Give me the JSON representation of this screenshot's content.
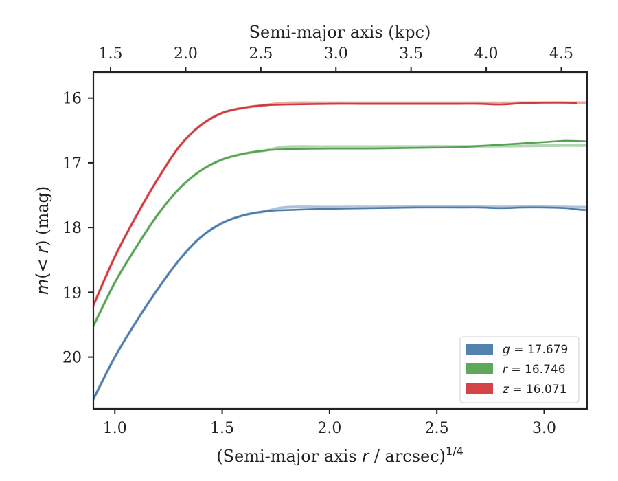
{
  "chart_data": {
    "type": "line",
    "xlabel": "(Semi-major axis r / arcsec)",
    "xlabel_parts": {
      "pre": "(Semi-major axis ",
      "var": "r",
      "post": " / arcsec)",
      "sup": "1/4"
    },
    "ylabel": "m(< r) (mag)",
    "ylabel_parts": {
      "pre": "m",
      "mid": "(< ",
      "var": "r",
      "post": ") (mag)"
    },
    "top_xlabel": "Semi-major axis (kpc)",
    "xlim": [
      0.9,
      3.2
    ],
    "ylim": [
      20.8,
      15.6
    ],
    "y_inverted": true,
    "x_ticks": [
      1.0,
      1.5,
      2.0,
      2.5,
      3.0
    ],
    "x_tick_labels": [
      "1.0",
      "1.5",
      "2.0",
      "2.5",
      "3.0"
    ],
    "y_ticks": [
      16,
      17,
      18,
      19,
      20
    ],
    "y_tick_labels": [
      "16",
      "17",
      "18",
      "19",
      "20"
    ],
    "top_ticks_kpc": [
      1.5,
      2.0,
      2.5,
      3.0,
      3.5,
      4.0,
      4.5
    ],
    "top_tick_labels": [
      "1.5",
      "2.0",
      "2.5",
      "3.0",
      "3.5",
      "4.0",
      "4.5"
    ],
    "top_ticks_at_x": [
      0.98,
      1.33,
      1.68,
      2.03,
      2.38,
      2.73,
      3.08
    ],
    "legend_position": "lower-right",
    "series": [
      {
        "name": "g",
        "legend_var": "g",
        "legend_value": "= 17.679",
        "color": "#4a7bab",
        "model_end_x": 3.2,
        "x": [
          0.9,
          1.0,
          1.1,
          1.2,
          1.3,
          1.4,
          1.5,
          1.6,
          1.7,
          1.8,
          2.0,
          2.2,
          2.4,
          2.6,
          2.7,
          2.8,
          2.9,
          3.0,
          3.1,
          3.15,
          3.2
        ],
        "y": [
          20.65,
          20.0,
          19.45,
          18.95,
          18.5,
          18.15,
          17.93,
          17.81,
          17.75,
          17.73,
          17.71,
          17.7,
          17.69,
          17.69,
          17.69,
          17.7,
          17.69,
          17.69,
          17.7,
          17.72,
          17.73
        ]
      },
      {
        "name": "r",
        "legend_var": "r",
        "legend_value": "= 16.746",
        "color": "#55a352",
        "model_end_x": 3.2,
        "x": [
          0.9,
          1.0,
          1.1,
          1.2,
          1.3,
          1.4,
          1.5,
          1.6,
          1.7,
          1.8,
          2.0,
          2.2,
          2.4,
          2.6,
          2.7,
          2.8,
          2.9,
          3.0,
          3.1,
          3.2
        ],
        "y": [
          19.52,
          18.85,
          18.3,
          17.8,
          17.4,
          17.12,
          16.95,
          16.86,
          16.81,
          16.79,
          16.78,
          16.78,
          16.77,
          16.76,
          16.74,
          16.72,
          16.7,
          16.68,
          16.66,
          16.67
        ]
      },
      {
        "name": "z",
        "legend_var": "z",
        "legend_value": "= 16.071",
        "color": "#d03a3c",
        "model_end_x": 3.2,
        "x": [
          0.9,
          1.0,
          1.1,
          1.2,
          1.3,
          1.4,
          1.5,
          1.6,
          1.7,
          1.8,
          2.0,
          2.2,
          2.4,
          2.6,
          2.7,
          2.8,
          2.9,
          3.0,
          3.1,
          3.15
        ],
        "y": [
          19.2,
          18.45,
          17.82,
          17.25,
          16.75,
          16.42,
          16.23,
          16.15,
          16.11,
          16.1,
          16.09,
          16.09,
          16.09,
          16.09,
          16.09,
          16.1,
          16.08,
          16.07,
          16.07,
          16.08
        ]
      }
    ]
  }
}
